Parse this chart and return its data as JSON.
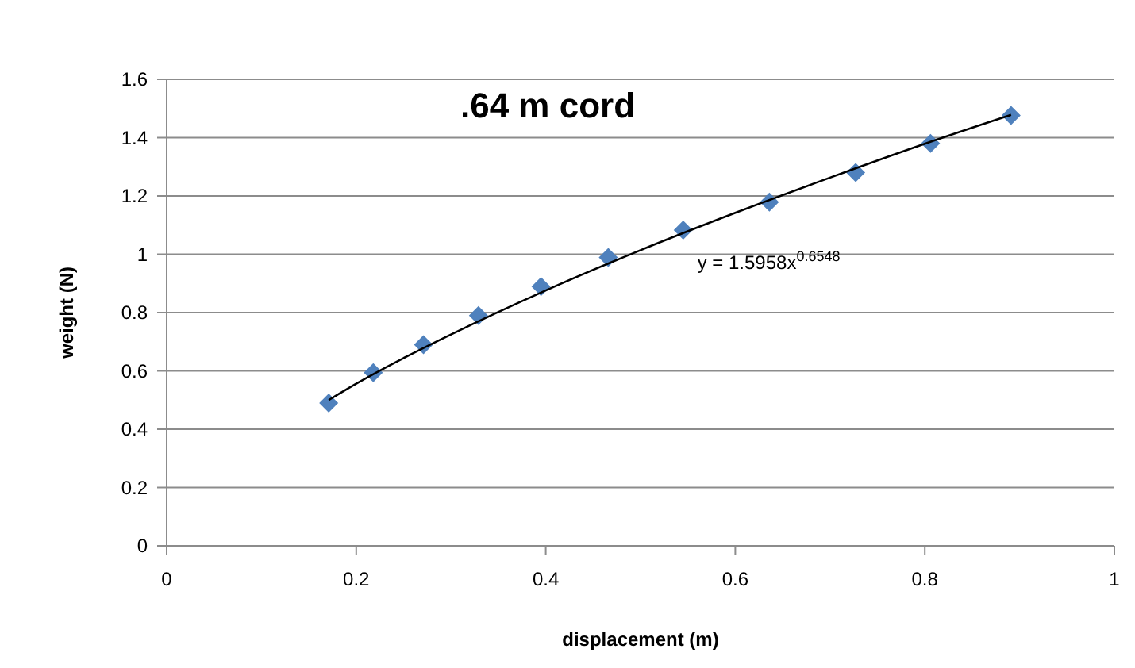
{
  "chart_data": {
    "type": "scatter",
    "title": ".64 m cord",
    "xlabel": "displacement (m)",
    "ylabel": "weight (N)",
    "annotations": [
      "y = 1.5958x$^{0.6548}$"
    ],
    "xlim": [
      0,
      1
    ],
    "xticks": [
      0,
      0.2,
      0.4,
      0.6,
      0.8,
      1
    ],
    "ylim": [
      0,
      1.6
    ],
    "yticks": [
      0,
      0.2,
      0.4,
      0.6,
      0.8,
      1,
      1.2,
      1.4,
      1.6
    ],
    "grid": "y",
    "series": [
      {
        "marker": "diamond",
        "color": "#4f81bd",
        "x": [
          0.171,
          0.218,
          0.271,
          0.329,
          0.395,
          0.466,
          0.545,
          0.636,
          0.727,
          0.806,
          0.891
        ],
        "values": [
          0.49,
          0.594,
          0.69,
          0.79,
          0.889,
          0.989,
          1.083,
          1.179,
          1.28,
          1.38,
          1.476
        ]
      },
      {
        "type": "line",
        "marker": "none",
        "color": "#000000",
        "x": [
          0.171,
          0.2,
          0.25,
          0.3,
          0.4,
          0.5,
          0.6,
          0.7,
          0.8,
          0.891
        ],
        "values": [
          0.5,
          0.556,
          0.644,
          0.725,
          0.876,
          1.014,
          1.142,
          1.263,
          1.379,
          1.478
        ]
      }
    ]
  }
}
